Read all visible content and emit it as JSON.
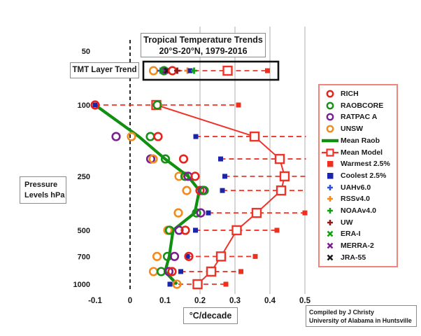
{
  "title": {
    "line1": "Tropical Temperature Trends",
    "line2": "20°S-20°N, 1979-2016"
  },
  "boxes": {
    "tmt_label": "TMT Layer Trend",
    "pressure_label_line1": "Pressure",
    "pressure_label_line2": "Levels hPa",
    "unit_label": "°C/decade",
    "credit_line1": "Compiled by J Christy",
    "credit_line2": "University of Alabama in Huntsville"
  },
  "legend": {
    "items": [
      {
        "label": "RICH",
        "marker": "circle",
        "color": "#e8231c"
      },
      {
        "label": "RAOBCORE",
        "marker": "circle",
        "color": "#169016"
      },
      {
        "label": "RATPAC A",
        "marker": "circle",
        "color": "#7b2090"
      },
      {
        "label": "UNSW",
        "marker": "circle",
        "color": "#f28a1d"
      },
      {
        "label": "Mean Raob",
        "marker": "line",
        "color": "#109010"
      },
      {
        "label": "Mean Model",
        "marker": "line-square",
        "color": "#f03328"
      },
      {
        "label": "Warmest 2.5%",
        "marker": "fsquare",
        "color": "#f0301f"
      },
      {
        "label": "Coolest 2.5%",
        "marker": "fsquare",
        "color": "#1c25aa"
      },
      {
        "label": "UAHv6.0",
        "marker": "plus",
        "color": "#2d4fd9"
      },
      {
        "label": "RSSv4.0",
        "marker": "plus",
        "color": "#f28a1d"
      },
      {
        "label": "NOAAv4.0",
        "marker": "plus",
        "color": "#10a010"
      },
      {
        "label": "UW",
        "marker": "plus",
        "color": "#8f1a1a"
      },
      {
        "label": "ERA-I",
        "marker": "x",
        "color": "#10a010"
      },
      {
        "label": "MERRA-2",
        "marker": "x",
        "color": "#7b2090"
      },
      {
        "label": "JRA-55",
        "marker": "x",
        "color": "#1b1b1b"
      }
    ]
  },
  "chart_data": {
    "type": "scatter",
    "title": "Tropical Temperature Trends 20°S-20°N, 1979-2016",
    "xlabel": "°C/decade",
    "ylabel": "Pressure Levels hPa",
    "x_tick_labels": [
      "-0.1",
      "0",
      "0.1",
      "0.2",
      "0.3",
      "0.4",
      "0.5"
    ],
    "x_tick_values": [
      -0.1,
      0,
      0.1,
      0.2,
      0.3,
      0.4,
      0.5
    ],
    "y_ticks": [
      50,
      100,
      250,
      500,
      700,
      1000
    ],
    "y_scale": "log",
    "xlim": [
      -0.15,
      0.52
    ],
    "grid_x": [
      0.2,
      0.3,
      0.4,
      0.5
    ],
    "zero_line": 0,
    "x_clip": 0.503,
    "colors": {
      "model_red": "#f03328",
      "raob_green": "#109010",
      "grid": "#c4c4c4",
      "zero": "#111111",
      "text": "#1a1a1a"
    },
    "marker_defs": {
      "rich": {
        "type": "circle",
        "color": "#e8231c"
      },
      "raobcore": {
        "type": "circle",
        "color": "#169016"
      },
      "ratpac": {
        "type": "circle",
        "color": "#7b2090"
      },
      "unsw": {
        "type": "circle",
        "color": "#f28a1d"
      },
      "coolest": {
        "type": "fsquare",
        "color": "#1c25aa"
      },
      "warmest": {
        "type": "fsquare",
        "color": "#f0301f"
      },
      "uah": {
        "type": "plus",
        "color": "#2d4fd9"
      },
      "rss": {
        "type": "plus",
        "color": "#f28a1d"
      },
      "noaa": {
        "type": "plus",
        "color": "#10a010"
      },
      "uw": {
        "type": "plus",
        "color": "#8f1a1a"
      },
      "era": {
        "type": "x",
        "color": "#10a010"
      },
      "merra2": {
        "type": "x",
        "color": "#7b2090"
      },
      "jra55": {
        "type": "x",
        "color": "#1b1b1b"
      }
    },
    "levels": [
      {
        "p": 100,
        "obs": [
          [
            "coolest",
            -0.1
          ],
          [
            "rich",
            -0.1
          ],
          [
            "raobcore",
            0.078
          ]
        ],
        "model": 0.075,
        "warmest": 0.31,
        "range_min": -0.1
      },
      {
        "p": 150,
        "obs": [
          [
            "ratpac",
            -0.04
          ],
          [
            "unsw",
            0.004
          ],
          [
            "raobcore",
            0.058
          ],
          [
            "rich",
            0.08
          ],
          [
            "coolest",
            0.188
          ]
        ],
        "model": 0.356,
        "warmest": null,
        "range_min": 0.188
      },
      {
        "p": 200,
        "obs": [
          [
            "ratpac",
            0.059
          ],
          [
            "unsw",
            0.066
          ],
          [
            "raobcore",
            0.101
          ],
          [
            "rich",
            0.153
          ],
          [
            "coolest",
            0.259
          ]
        ],
        "model": 0.428,
        "warmest": null,
        "range_min": 0.259
      },
      {
        "p": 250,
        "obs": [
          [
            "unsw",
            0.14
          ],
          [
            "raobcore",
            0.157
          ],
          [
            "ratpac",
            0.166
          ],
          [
            "rich",
            0.186
          ],
          [
            "coolest",
            0.271
          ]
        ],
        "model": 0.442,
        "warmest": null,
        "range_min": 0.271
      },
      {
        "p": 300,
        "obs": [
          [
            "unsw",
            0.162
          ],
          [
            "rich",
            0.2
          ],
          [
            "ratpac",
            0.208
          ],
          [
            "raobcore",
            0.212
          ],
          [
            "coolest",
            0.264
          ]
        ],
        "model": 0.432,
        "warmest": null,
        "range_min": 0.264
      },
      {
        "p": 400,
        "obs": [
          [
            "unsw",
            0.138
          ],
          [
            "raobcore",
            0.19
          ],
          [
            "ratpac",
            0.202
          ],
          [
            "coolest",
            0.224
          ]
        ],
        "model": 0.362,
        "warmest": 0.5,
        "range_min": 0.224
      },
      {
        "p": 500,
        "obs": [
          [
            "unsw",
            0.108
          ],
          [
            "raobcore",
            0.113
          ],
          [
            "ratpac",
            0.14
          ],
          [
            "rich",
            0.158
          ],
          [
            "coolest",
            0.187
          ]
        ],
        "model": 0.305,
        "warmest": 0.42,
        "range_min": 0.187
      },
      {
        "p": 700,
        "obs": [
          [
            "unsw",
            0.077
          ],
          [
            "raobcore",
            0.107
          ],
          [
            "ratpac",
            0.127
          ],
          [
            "coolest",
            0.164
          ],
          [
            "rich",
            0.168
          ]
        ],
        "model": 0.26,
        "warmest": 0.358,
        "range_min": 0.164
      },
      {
        "p": 850,
        "obs": [
          [
            "unsw",
            0.067
          ],
          [
            "raobcore",
            0.089
          ],
          [
            "ratpac",
            0.111
          ],
          [
            "rich",
            0.12
          ],
          [
            "coolest",
            0.145
          ]
        ],
        "model": 0.232,
        "warmest": 0.317,
        "range_min": 0.145
      },
      {
        "p": 1000,
        "obs": [
          [
            "coolest",
            0.114
          ],
          [
            "unsw",
            0.134
          ]
        ],
        "model": 0.193,
        "warmest": 0.274,
        "range_min": 0.114
      }
    ],
    "mean_raob": [
      [
        100,
        -0.1
      ],
      [
        150,
        0.025
      ],
      [
        200,
        0.1
      ],
      [
        250,
        0.166
      ],
      [
        300,
        0.198
      ],
      [
        400,
        0.185
      ],
      [
        500,
        0.123
      ],
      [
        700,
        0.112
      ],
      [
        850,
        0.1
      ],
      [
        1000,
        0.134
      ]
    ],
    "tmt_layer": {
      "label": "TMT Layer Trend",
      "obs": [
        [
          "unsw",
          0.067
        ],
        [
          "uah",
          0.087
        ],
        [
          "era",
          0.094
        ],
        [
          "raobcore",
          0.097
        ],
        [
          "merra2",
          0.101
        ],
        [
          "jra55",
          0.106
        ],
        [
          "rich",
          0.121
        ],
        [
          "uw",
          0.135
        ],
        [
          "rss",
          0.164
        ],
        [
          "coolest",
          0.172
        ],
        [
          "noaa",
          0.183
        ]
      ],
      "model": 0.279,
      "warmest": 0.393,
      "range_min": 0.135
    }
  }
}
